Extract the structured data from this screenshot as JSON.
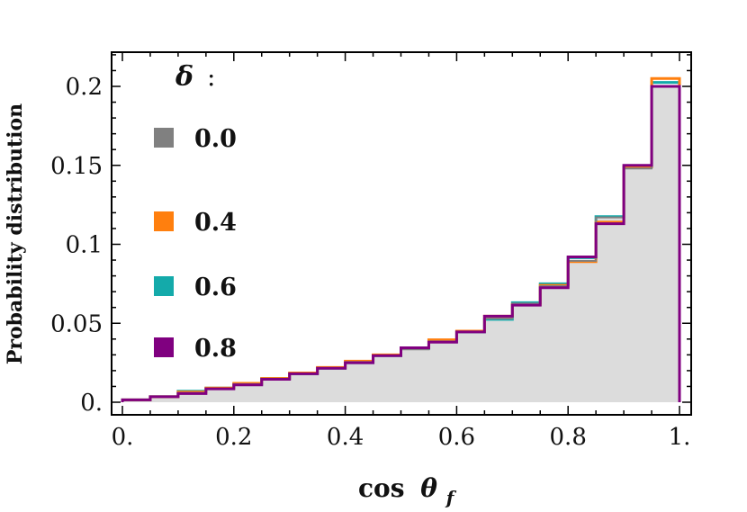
{
  "chart_data": {
    "type": "histogram-step",
    "title": "",
    "xlabel": "cos",
    "xlabel_symbol": "θ",
    "xlabel_subscript": "f",
    "ylabel": "Probability distribution",
    "xlim": [
      0,
      1
    ],
    "ylim": [
      0,
      0.22
    ],
    "x_ticks": [
      {
        "value": 0,
        "label": "0."
      },
      {
        "value": 0.2,
        "label": "0.2"
      },
      {
        "value": 0.4,
        "label": "0.4"
      },
      {
        "value": 0.6,
        "label": "0.6"
      },
      {
        "value": 0.8,
        "label": "0.8"
      },
      {
        "value": 1,
        "label": "1."
      }
    ],
    "y_ticks": [
      {
        "value": 0,
        "label": "0."
      },
      {
        "value": 0.05,
        "label": "0.05"
      },
      {
        "value": 0.1,
        "label": "0.1"
      },
      {
        "value": 0.15,
        "label": "0.15"
      },
      {
        "value": 0.2,
        "label": "0.2"
      }
    ],
    "bin_edges": [
      0,
      0.05,
      0.1,
      0.15,
      0.2,
      0.25,
      0.3,
      0.35,
      0.4,
      0.45,
      0.5,
      0.55,
      0.6,
      0.65,
      0.7,
      0.75,
      0.8,
      0.85,
      0.9,
      0.95,
      1.0
    ],
    "legend": {
      "title": "δ",
      "title_suffix": ":",
      "placement": "top-left"
    },
    "series": [
      {
        "name": "0.0",
        "color": "#808080",
        "style": "filled",
        "values": [
          0.0015,
          0.0035,
          0.006,
          0.0085,
          0.0115,
          0.0145,
          0.018,
          0.0215,
          0.0255,
          0.0295,
          0.0335,
          0.0385,
          0.0445,
          0.053,
          0.0625,
          0.0735,
          0.0895,
          0.117,
          0.148,
          0.2
        ]
      },
      {
        "name": "0.4",
        "color": "#ff7f0e",
        "style": "line",
        "values": [
          0.0015,
          0.0035,
          0.0065,
          0.009,
          0.012,
          0.015,
          0.0185,
          0.022,
          0.026,
          0.03,
          0.0345,
          0.0395,
          0.045,
          0.0545,
          0.062,
          0.074,
          0.089,
          0.114,
          0.149,
          0.205
        ]
      },
      {
        "name": "0.6",
        "color": "#14aaaa",
        "style": "line",
        "values": [
          0.0015,
          0.0035,
          0.007,
          0.009,
          0.0115,
          0.015,
          0.018,
          0.0215,
          0.025,
          0.0295,
          0.034,
          0.0385,
          0.0445,
          0.0525,
          0.063,
          0.075,
          0.0915,
          0.1175,
          0.149,
          0.2025
        ]
      },
      {
        "name": "0.8",
        "color": "#800080",
        "style": "line",
        "values": [
          0.0015,
          0.0035,
          0.0055,
          0.0085,
          0.011,
          0.0145,
          0.018,
          0.0215,
          0.025,
          0.0295,
          0.0345,
          0.038,
          0.0445,
          0.0545,
          0.0615,
          0.0725,
          0.092,
          0.113,
          0.15,
          0.2
        ]
      }
    ]
  }
}
